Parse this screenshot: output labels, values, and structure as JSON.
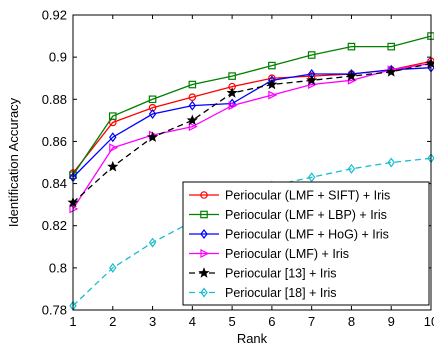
{
  "chart_data": {
    "type": "line",
    "title": "",
    "xlabel": "Rank",
    "ylabel": "Identification Accuracy",
    "x": [
      1,
      2,
      3,
      4,
      5,
      6,
      7,
      8,
      9,
      10
    ],
    "xlim": [
      1,
      10
    ],
    "ylim": [
      0.78,
      0.92
    ],
    "xticks": [
      "1",
      "2",
      "3",
      "4",
      "5",
      "6",
      "7",
      "8",
      "9",
      "10"
    ],
    "yticks": [
      "0.78",
      "0.8",
      "0.82",
      "0.84",
      "0.86",
      "0.88",
      "0.9",
      "0.92"
    ],
    "ytick_values": [
      0.78,
      0.8,
      0.82,
      0.84,
      0.86,
      0.88,
      0.9,
      0.92
    ],
    "grid": false,
    "legend_position": "bottom-right",
    "series": [
      {
        "name": "Periocular (LMF + SIFT) + Iris",
        "color": "#ff0000",
        "marker": "circle",
        "dash": "solid",
        "values": [
          0.845,
          0.869,
          0.876,
          0.881,
          0.886,
          0.89,
          0.891,
          0.892,
          0.894,
          0.898
        ]
      },
      {
        "name": "Periocular (LMF + LBP) + Iris",
        "color": "#008000",
        "marker": "square",
        "dash": "solid",
        "values": [
          0.844,
          0.872,
          0.88,
          0.887,
          0.891,
          0.896,
          0.901,
          0.905,
          0.905,
          0.91
        ]
      },
      {
        "name": "Periocular (LMF + HoG) + Iris",
        "color": "#0000ff",
        "marker": "diamond",
        "dash": "solid",
        "values": [
          0.843,
          0.862,
          0.873,
          0.877,
          0.878,
          0.889,
          0.892,
          0.892,
          0.894,
          0.895
        ]
      },
      {
        "name": "Periocular (LMF) + Iris",
        "color": "#ff00ff",
        "marker": "triangle-right",
        "dash": "solid",
        "values": [
          0.828,
          0.857,
          0.863,
          0.867,
          0.877,
          0.882,
          0.887,
          0.889,
          0.894,
          0.897
        ]
      },
      {
        "name": "Periocular [13] + Iris",
        "color": "#000000",
        "marker": "star",
        "dash": "dashed",
        "values": [
          0.831,
          0.848,
          0.862,
          0.87,
          0.883,
          0.887,
          0.889,
          0.891,
          0.893,
          0.897
        ]
      },
      {
        "name": "Periocular [18] + Iris",
        "color": "#17becf",
        "marker": "diamond",
        "dash": "dashed",
        "values": [
          0.782,
          0.8,
          0.812,
          0.822,
          0.832,
          0.839,
          0.843,
          0.847,
          0.85,
          0.852
        ]
      }
    ]
  }
}
